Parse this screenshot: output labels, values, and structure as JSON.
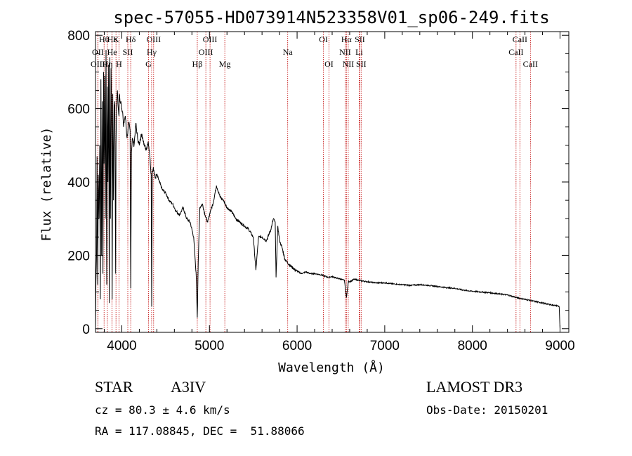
{
  "title": "spec-57055-HD073914N523358V01_sp06-249.fits",
  "info": {
    "class_label": "STAR",
    "subclass": "A3IV",
    "survey": "LAMOST DR3",
    "cz_text": "cz = 80.3 ± 4.6 km/s",
    "obs_date_text": "Obs-Date: 20150201",
    "coords_text": "RA = 117.08845, DEC =  51.88066"
  },
  "chart_data": {
    "type": "line",
    "title": "spec-57055-HD073914N523358V01_sp06-249.fits",
    "xlabel": "Wavelength (Å)",
    "ylabel": "Flux (relative)",
    "xlim": [
      3700,
      9100
    ],
    "ylim": [
      -10,
      810
    ],
    "xticks": [
      4000,
      5000,
      6000,
      7000,
      8000,
      9000
    ],
    "yticks": [
      0,
      200,
      400,
      600,
      800
    ],
    "series": [
      {
        "name": "flux",
        "x": [
          3700,
          3705,
          3712,
          3718,
          3725,
          3732,
          3740,
          3748,
          3755,
          3762,
          3770,
          3778,
          3785,
          3792,
          3798,
          3805,
          3812,
          3820,
          3828,
          3835,
          3842,
          3850,
          3857,
          3863,
          3870,
          3878,
          3885,
          3890,
          3897,
          3905,
          3912,
          3920,
          3930,
          3934,
          3940,
          3950,
          3960,
          3968,
          3972,
          3980,
          3990,
          4000,
          4010,
          4020,
          4030,
          4040,
          4060,
          4080,
          4095,
          4102,
          4110,
          4120,
          4140,
          4160,
          4180,
          4200,
          4220,
          4240,
          4260,
          4280,
          4300,
          4320,
          4335,
          4341,
          4348,
          4360,
          4380,
          4400,
          4430,
          4460,
          4500,
          4540,
          4580,
          4620,
          4660,
          4700,
          4740,
          4780,
          4820,
          4850,
          4861,
          4872,
          4890,
          4920,
          4950,
          4980,
          5010,
          5040,
          5080,
          5120,
          5160,
          5200,
          5250,
          5300,
          5350,
          5400,
          5450,
          5500,
          5530,
          5560,
          5600,
          5650,
          5700,
          5730,
          5750,
          5760,
          5780,
          5800,
          5830,
          5860,
          5890,
          5930,
          5980,
          6050,
          6100,
          6150,
          6200,
          6250,
          6300,
          6350,
          6400,
          6450,
          6500,
          6540,
          6563,
          6585,
          6620,
          6650,
          6700,
          6750,
          6800,
          6900,
          7000,
          7100,
          7200,
          7300,
          7400,
          7500,
          7600,
          7700,
          7800,
          7900,
          8000,
          8100,
          8200,
          8300,
          8400,
          8500,
          8600,
          8700,
          8800,
          8900,
          8980,
          8990,
          9000
        ],
        "values": [
          0,
          130,
          200,
          470,
          120,
          420,
          300,
          500,
          80,
          680,
          200,
          620,
          150,
          700,
          450,
          690,
          300,
          760,
          120,
          660,
          400,
          720,
          70,
          740,
          300,
          710,
          520,
          80,
          640,
          350,
          600,
          620,
          150,
          500,
          610,
          650,
          600,
          580,
          640,
          620,
          620,
          600,
          590,
          550,
          570,
          580,
          520,
          560,
          540,
          110,
          480,
          520,
          500,
          560,
          520,
          500,
          530,
          520,
          500,
          490,
          510,
          470,
          420,
          60,
          430,
          440,
          410,
          420,
          400,
          380,
          370,
          350,
          340,
          320,
          310,
          330,
          300,
          290,
          250,
          140,
          30,
          180,
          330,
          340,
          310,
          290,
          320,
          340,
          390,
          360,
          350,
          330,
          320,
          300,
          290,
          280,
          270,
          250,
          160,
          250,
          250,
          240,
          270,
          300,
          290,
          140,
          280,
          240,
          220,
          190,
          180,
          170,
          160,
          150,
          155,
          150,
          150,
          148,
          145,
          140,
          142,
          138,
          135,
          132,
          85,
          128,
          130,
          135,
          132,
          130,
          128,
          125,
          125,
          122,
          120,
          118,
          120,
          118,
          115,
          112,
          110,
          105,
          102,
          100,
          98,
          95,
          92,
          85,
          80,
          75,
          70,
          65,
          62,
          60,
          0
        ]
      }
    ],
    "lines": [
      {
        "label": "Hθ",
        "wave": 3797.9,
        "row": 0
      },
      {
        "label": "Hε",
        "wave": 3889.0,
        "row": 0
      },
      {
        "label": "K",
        "wave": 3933.7,
        "row": 0
      },
      {
        "label": "Hδ",
        "wave": 4101.7,
        "row": 0
      },
      {
        "label": "OIII",
        "wave": 4363.2,
        "row": 0
      },
      {
        "label": "OIII",
        "wave": 5006.8,
        "row": 0
      },
      {
        "label": "OI",
        "wave": 6300.3,
        "row": 0
      },
      {
        "label": "Hα",
        "wave": 6562.8,
        "row": 0
      },
      {
        "label": "SII",
        "wave": 6716.4,
        "row": 0
      },
      {
        "label": "CaII",
        "wave": 8542.1,
        "row": 0
      },
      {
        "label": "OII",
        "wave": 3727.0,
        "row": 1
      },
      {
        "label": "He",
        "wave": 3889.0,
        "row": 1
      },
      {
        "label": "SII",
        "wave": 4068.6,
        "row": 1
      },
      {
        "label": "Hγ",
        "wave": 4340.5,
        "row": 1
      },
      {
        "label": "OIII",
        "wave": 4958.9,
        "row": 1
      },
      {
        "label": "Na",
        "wave": 5892.9,
        "row": 1
      },
      {
        "label": "NII",
        "wave": 6548.1,
        "row": 1
      },
      {
        "label": "Li",
        "wave": 6707.8,
        "row": 1
      },
      {
        "label": "CaII",
        "wave": 8498.0,
        "row": 1
      },
      {
        "label": "OIII",
        "wave": 3727.0,
        "row": 2
      },
      {
        "label": "Hη",
        "wave": 3835.4,
        "row": 2
      },
      {
        "label": "H",
        "wave": 3968.5,
        "row": 2
      },
      {
        "label": "G",
        "wave": 4304.4,
        "row": 2
      },
      {
        "label": "Hβ",
        "wave": 4861.3,
        "row": 2
      },
      {
        "label": "Mg",
        "wave": 5175.3,
        "row": 2
      },
      {
        "label": "OI",
        "wave": 6363.8,
        "row": 2
      },
      {
        "label": "NII",
        "wave": 6583.5,
        "row": 2
      },
      {
        "label": "SII",
        "wave": 6730.8,
        "row": 2
      },
      {
        "label": "CaII",
        "wave": 8662.1,
        "row": 2
      }
    ]
  }
}
